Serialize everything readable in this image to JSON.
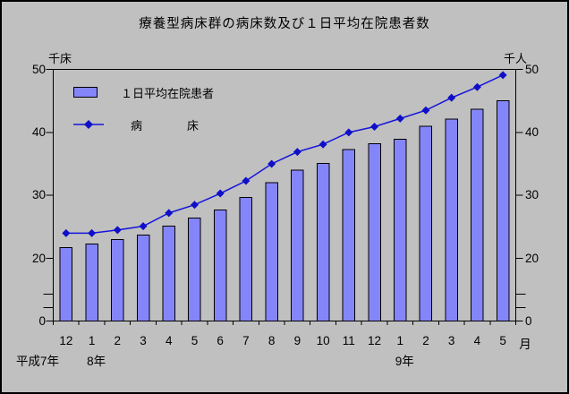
{
  "window": {
    "background": "#c0c0c0",
    "border_color": "#000000"
  },
  "chart_data": {
    "type": "bar+line",
    "title": "療養型病床群の病床数及び１日平均在院患者数",
    "left_axis_unit": "千床",
    "right_axis_unit": "千人",
    "categories": [
      "12",
      "1",
      "2",
      "3",
      "4",
      "5",
      "6",
      "7",
      "8",
      "9",
      "10",
      "11",
      "12",
      "1",
      "2",
      "3",
      "4",
      "5"
    ],
    "x_suffix": "月",
    "era_labels": [
      {
        "text": "平成7年",
        "center_x": 40
      },
      {
        "text": "8年",
        "category_index": 1
      },
      {
        "text": "9年",
        "category_index": 13
      }
    ],
    "y_ticks": [
      {
        "label": "50",
        "value": 50
      },
      {
        "label": "40",
        "value": 40
      },
      {
        "label": "30",
        "value": 30
      },
      {
        "label": "20",
        "value": 20
      },
      {
        "label": "0",
        "value": 0
      }
    ],
    "y_axis_break_between": [
      0,
      20
    ],
    "ylim": [
      0,
      50
    ],
    "grid": false,
    "legend_position": "inside-top-left",
    "series": [
      {
        "name": "１日平均在院患者",
        "type": "bar",
        "axis": "right",
        "unit": "千人",
        "values": [
          21.7,
          22.3,
          23.0,
          23.7,
          25.1,
          26.4,
          27.7,
          29.7,
          32.0,
          34.0,
          35.1,
          37.3,
          38.2,
          38.9,
          41.0,
          42.1,
          43.7,
          45.0
        ]
      },
      {
        "name": "病　　床",
        "type": "line",
        "axis": "left",
        "unit": "千床",
        "values": [
          24.0,
          24.0,
          24.5,
          25.1,
          27.2,
          28.5,
          30.3,
          32.3,
          35.0,
          36.9,
          38.1,
          40.0,
          40.9,
          42.2,
          43.5,
          45.5,
          47.2,
          49.1
        ]
      }
    ],
    "colors": {
      "bar_fill": "#8585fa",
      "bar_stroke": "#000000",
      "line": "#1414dc",
      "marker": "#0f0fc8",
      "axis": "#000000",
      "text": "#000000"
    }
  }
}
